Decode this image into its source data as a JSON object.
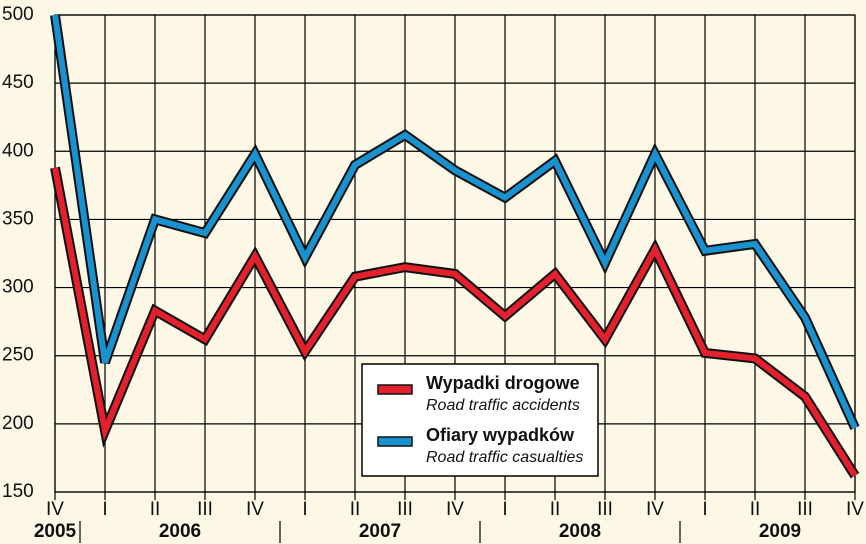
{
  "chart_data": {
    "type": "line",
    "categories": [
      "IV",
      "I",
      "II",
      "III",
      "IV",
      "I",
      "II",
      "III",
      "IV",
      "I",
      "II",
      "III",
      "IV",
      "I",
      "II",
      "III",
      "IV"
    ],
    "year_groups": [
      {
        "label": "2005",
        "from": 0,
        "to": 0
      },
      {
        "label": "2006",
        "from": 1,
        "to": 4
      },
      {
        "label": "2007",
        "from": 5,
        "to": 8
      },
      {
        "label": "2008",
        "from": 9,
        "to": 12
      },
      {
        "label": "2009",
        "from": 13,
        "to": 16
      }
    ],
    "series": [
      {
        "name": "Wypadki drogowe",
        "name_en": "Road traffic accidents",
        "color": "#e3202b",
        "values": [
          388,
          195,
          283,
          262,
          323,
          253,
          308,
          315,
          310,
          279,
          310,
          262,
          328,
          252,
          248,
          220,
          162
        ]
      },
      {
        "name": "Ofiary wypadków",
        "name_en": "Road traffic casualties",
        "color": "#1a92d0",
        "values": [
          500,
          245,
          350,
          340,
          398,
          322,
          390,
          412,
          386,
          366,
          393,
          318,
          398,
          327,
          332,
          278,
          197
        ]
      }
    ],
    "ylim": [
      150,
      500
    ],
    "yticks": [
      150,
      200,
      250,
      300,
      350,
      400,
      450,
      500
    ],
    "grid": true
  }
}
